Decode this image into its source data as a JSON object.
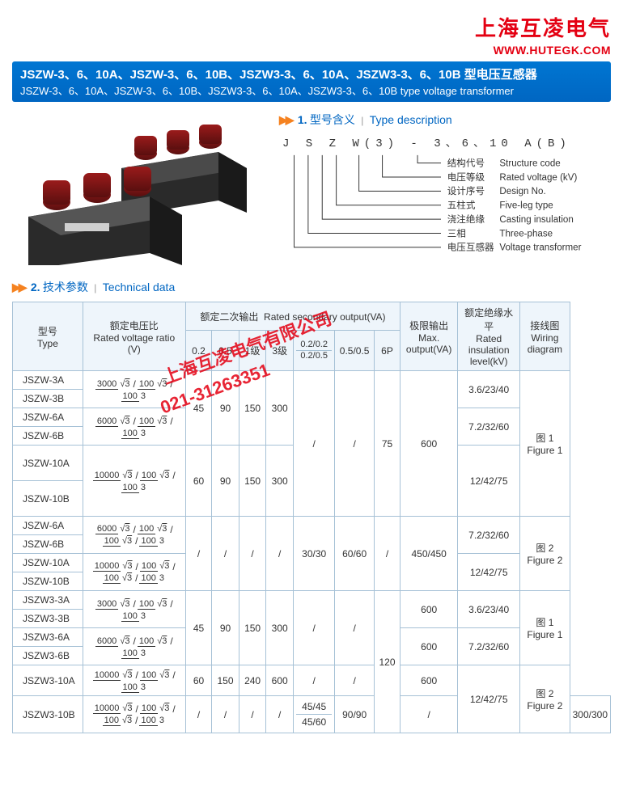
{
  "brand": {
    "cn": "上海互凌电气",
    "url": "WWW.HUTEGK.COM"
  },
  "titlebar": {
    "cn": "JSZW-3、6、10A、JSZW-3、6、10B、JSZW3-3、6、10A、JSZW3-3、6、10B 型电压互感器",
    "en": "JSZW-3、6、10A、JSZW-3、6、10B、JSZW3-3、6、10A、JSZW3-3、6、10B type voltage transformer"
  },
  "sec1": {
    "num": "1.",
    "cn": "型号含义",
    "en": "Type description"
  },
  "sec2": {
    "num": "2.",
    "cn": "技术参数",
    "en": "Technical data"
  },
  "model_code": "J S Z W(3) - 3、6、10 A(B)",
  "bracket_rows": [
    {
      "cn": "结构代号",
      "en": "Structure code"
    },
    {
      "cn": "电压等级",
      "en": "Rated voltage (kV)"
    },
    {
      "cn": "设计序号",
      "en": "Design No."
    },
    {
      "cn": "五柱式",
      "en": "Five-leg type"
    },
    {
      "cn": "浇注绝缘",
      "en": "Casting insulation"
    },
    {
      "cn": "三相",
      "en": "Three-phase"
    },
    {
      "cn": "电压互感器",
      "en": "Voltage transformer"
    }
  ],
  "headers": {
    "type": {
      "cn": "型号",
      "en": "Type"
    },
    "ratio": {
      "cn": "额定电压比",
      "en": "Rated voltage ratio",
      "unit": "(V)"
    },
    "secondary": {
      "cn": "额定二次输出",
      "en": "Rated secondary output(VA)"
    },
    "cols": [
      "0.2",
      "0.5",
      "1级",
      "3级"
    ],
    "col5_top": "0.2/0.2",
    "col5_bot": "0.2/0.5",
    "col6": "0.5/0.5",
    "col7": "6P",
    "max": {
      "cn": "极限输出",
      "en": "Max. output(VA)"
    },
    "insul": {
      "cn": "额定绝缘水平",
      "en": "Rated insulation level(kV)"
    },
    "wiring": {
      "cn": "接线图",
      "en": "Wiring diagram"
    }
  },
  "sqrt3": "√3",
  "groups": [
    {
      "types": [
        "JSZW-3A",
        "JSZW-3B"
      ],
      "ratio": [
        [
          "3000",
          "√3"
        ],
        [
          "100",
          "√3"
        ],
        [
          "100",
          "3"
        ]
      ],
      "c": [
        "45",
        "90",
        "150",
        "300",
        "/",
        "/",
        "75"
      ],
      "c_span": 2,
      "max": "600",
      "max_span": 3,
      "insul": "3.6/23/40",
      "wiring": {
        "cn": "图 1",
        "en": "Figure 1"
      },
      "wiring_span": 2
    },
    {
      "types": [
        "JSZW-6A",
        "JSZW-6B"
      ],
      "ratio": [
        [
          "6000",
          "√3"
        ],
        [
          "100",
          "√3"
        ],
        [
          "100",
          "3"
        ]
      ],
      "insul": "7.2/32/60"
    },
    {
      "types": [
        "JSZW-10A",
        "JSZW-10B"
      ],
      "ratio": [
        [
          "10000",
          "√3"
        ],
        [
          "100",
          "√3"
        ],
        [
          "100",
          "3"
        ]
      ],
      "c": [
        "60",
        "90",
        "150",
        "300",
        "/",
        "/",
        "75"
      ],
      "insul": "12/42/75",
      "tall": true
    },
    {
      "types": [
        "JSZW-6A",
        "JSZW-6B"
      ],
      "ratio": [
        [
          "6000",
          "√3"
        ],
        [
          "100",
          "√3"
        ],
        [
          "100",
          "√3"
        ],
        [
          "100",
          "3"
        ]
      ],
      "c": [
        "/",
        "/",
        "/",
        "/",
        "30/30",
        "60/60",
        "/"
      ],
      "c_span": 2,
      "max": "450/450",
      "max_span": 2,
      "insul": "7.2/32/60",
      "wiring": {
        "cn": "图 2",
        "en": "Figure 2"
      },
      "wiring_span": 2
    },
    {
      "types": [
        "JSZW-10A",
        "JSZW-10B"
      ],
      "ratio": [
        [
          "10000",
          "√3"
        ],
        [
          "100",
          "√3"
        ],
        [
          "100",
          "√3"
        ],
        [
          "100",
          "3"
        ]
      ],
      "insul": "12/42/75"
    },
    {
      "types": [
        "JSZW3-3A",
        "JSZW3-3B"
      ],
      "ratio": [
        [
          "3000",
          "√3"
        ],
        [
          "100",
          "√3"
        ],
        [
          "100",
          "3"
        ]
      ],
      "c": [
        "45",
        "90",
        "150",
        "300",
        "/",
        "/",
        "120"
      ],
      "c_span": 2,
      "c7_span": 4,
      "max": "600",
      "insul": "3.6/23/40",
      "wiring": {
        "cn": "图 1",
        "en": "Figure 1"
      },
      "wiring_span": 2
    },
    {
      "types": [
        "JSZW3-6A",
        "JSZW3-6B"
      ],
      "ratio": [
        [
          "6000",
          "√3"
        ],
        [
          "100",
          "√3"
        ],
        [
          "100",
          "3"
        ]
      ],
      "max": "600",
      "insul": "7.2/32/60"
    },
    {
      "types": [
        "JSZW3-10A"
      ],
      "ratio": [
        [
          "10000",
          "√3"
        ],
        [
          "100",
          "√3"
        ],
        [
          "100",
          "3"
        ]
      ],
      "c": [
        "60",
        "150",
        "240",
        "600",
        "/",
        "/"
      ],
      "max": "600",
      "insul": "12/42/75",
      "insul_span": 2
    },
    {
      "types": [
        "JSZW3-10B"
      ],
      "ratio": [
        [
          "10000",
          "√3"
        ],
        [
          "100",
          "√3"
        ],
        [
          "100",
          "√3"
        ],
        [
          "100",
          "3"
        ]
      ],
      "c": [
        "/",
        "/",
        "/",
        "/",
        "45/45\n45/60",
        "90/90"
      ],
      "max": "300/300",
      "wiring": {
        "cn": "图 2",
        "en": "Figure 2"
      }
    }
  ],
  "watermark": {
    "line1": "上海互凌电气有限公司",
    "line2": "021-31263351"
  },
  "colors": {
    "primary": "#0066c2",
    "accent": "#f58220",
    "red": "#e40012",
    "border": "#a6c1d6",
    "head_bg": "#eef5fb"
  }
}
